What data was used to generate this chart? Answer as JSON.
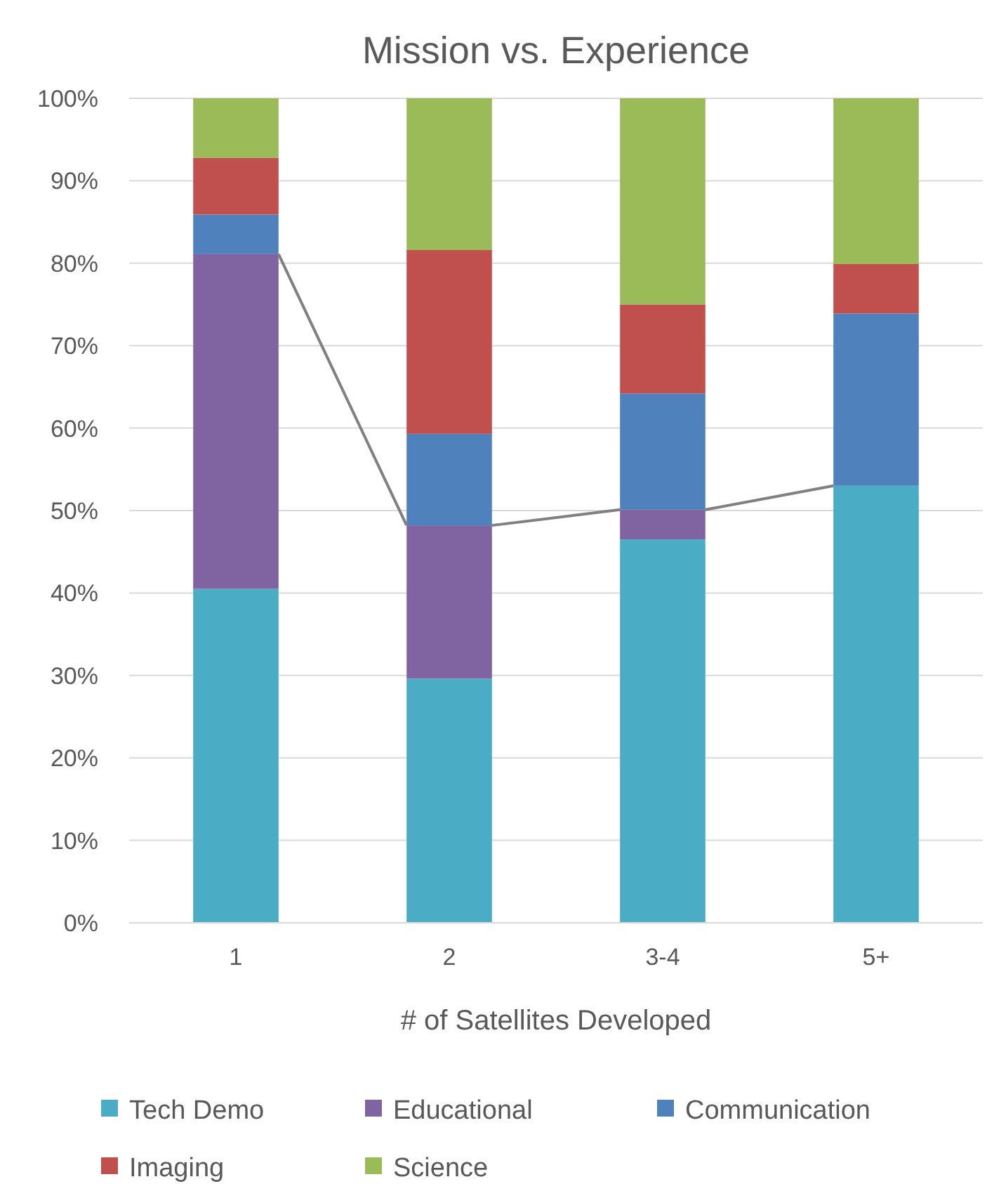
{
  "chart_data": {
    "type": "bar",
    "stacked": true,
    "title": "Mission vs. Experience",
    "xlabel": "# of Satellites Developed",
    "categories": [
      "1",
      "2",
      "3-4",
      "5+"
    ],
    "series": [
      {
        "name": "Tech Demo",
        "color": "#4bacc6",
        "values": [
          40.5,
          29.6,
          46.5,
          53.0
        ]
      },
      {
        "name": "Educational",
        "color": "#8064a2",
        "values": [
          40.6,
          18.6,
          3.6,
          0
        ]
      },
      {
        "name": "Communication",
        "color": "#4f81bd",
        "values": [
          4.8,
          11.1,
          14.1,
          20.9
        ]
      },
      {
        "name": "Imaging",
        "color": "#c0504d",
        "values": [
          6.9,
          22.3,
          10.8,
          6.0
        ]
      },
      {
        "name": "Science",
        "color": "#9bbb59",
        "values": [
          7.2,
          18.4,
          25.0,
          20.1
        ]
      }
    ],
    "ylim": [
      0,
      100
    ],
    "yticks": [
      {
        "value": 0,
        "label": "0%"
      },
      {
        "value": 10,
        "label": "10%"
      },
      {
        "value": 20,
        "label": "20%"
      },
      {
        "value": 30,
        "label": "30%"
      },
      {
        "value": 40,
        "label": "40%"
      },
      {
        "value": 50,
        "label": "50%"
      },
      {
        "value": 60,
        "label": "60%"
      },
      {
        "value": 70,
        "label": "70%"
      },
      {
        "value": 80,
        "label": "80%"
      },
      {
        "value": 90,
        "label": "90%"
      },
      {
        "value": 100,
        "label": "100%"
      }
    ],
    "grid": "y",
    "legend": "bottom"
  }
}
